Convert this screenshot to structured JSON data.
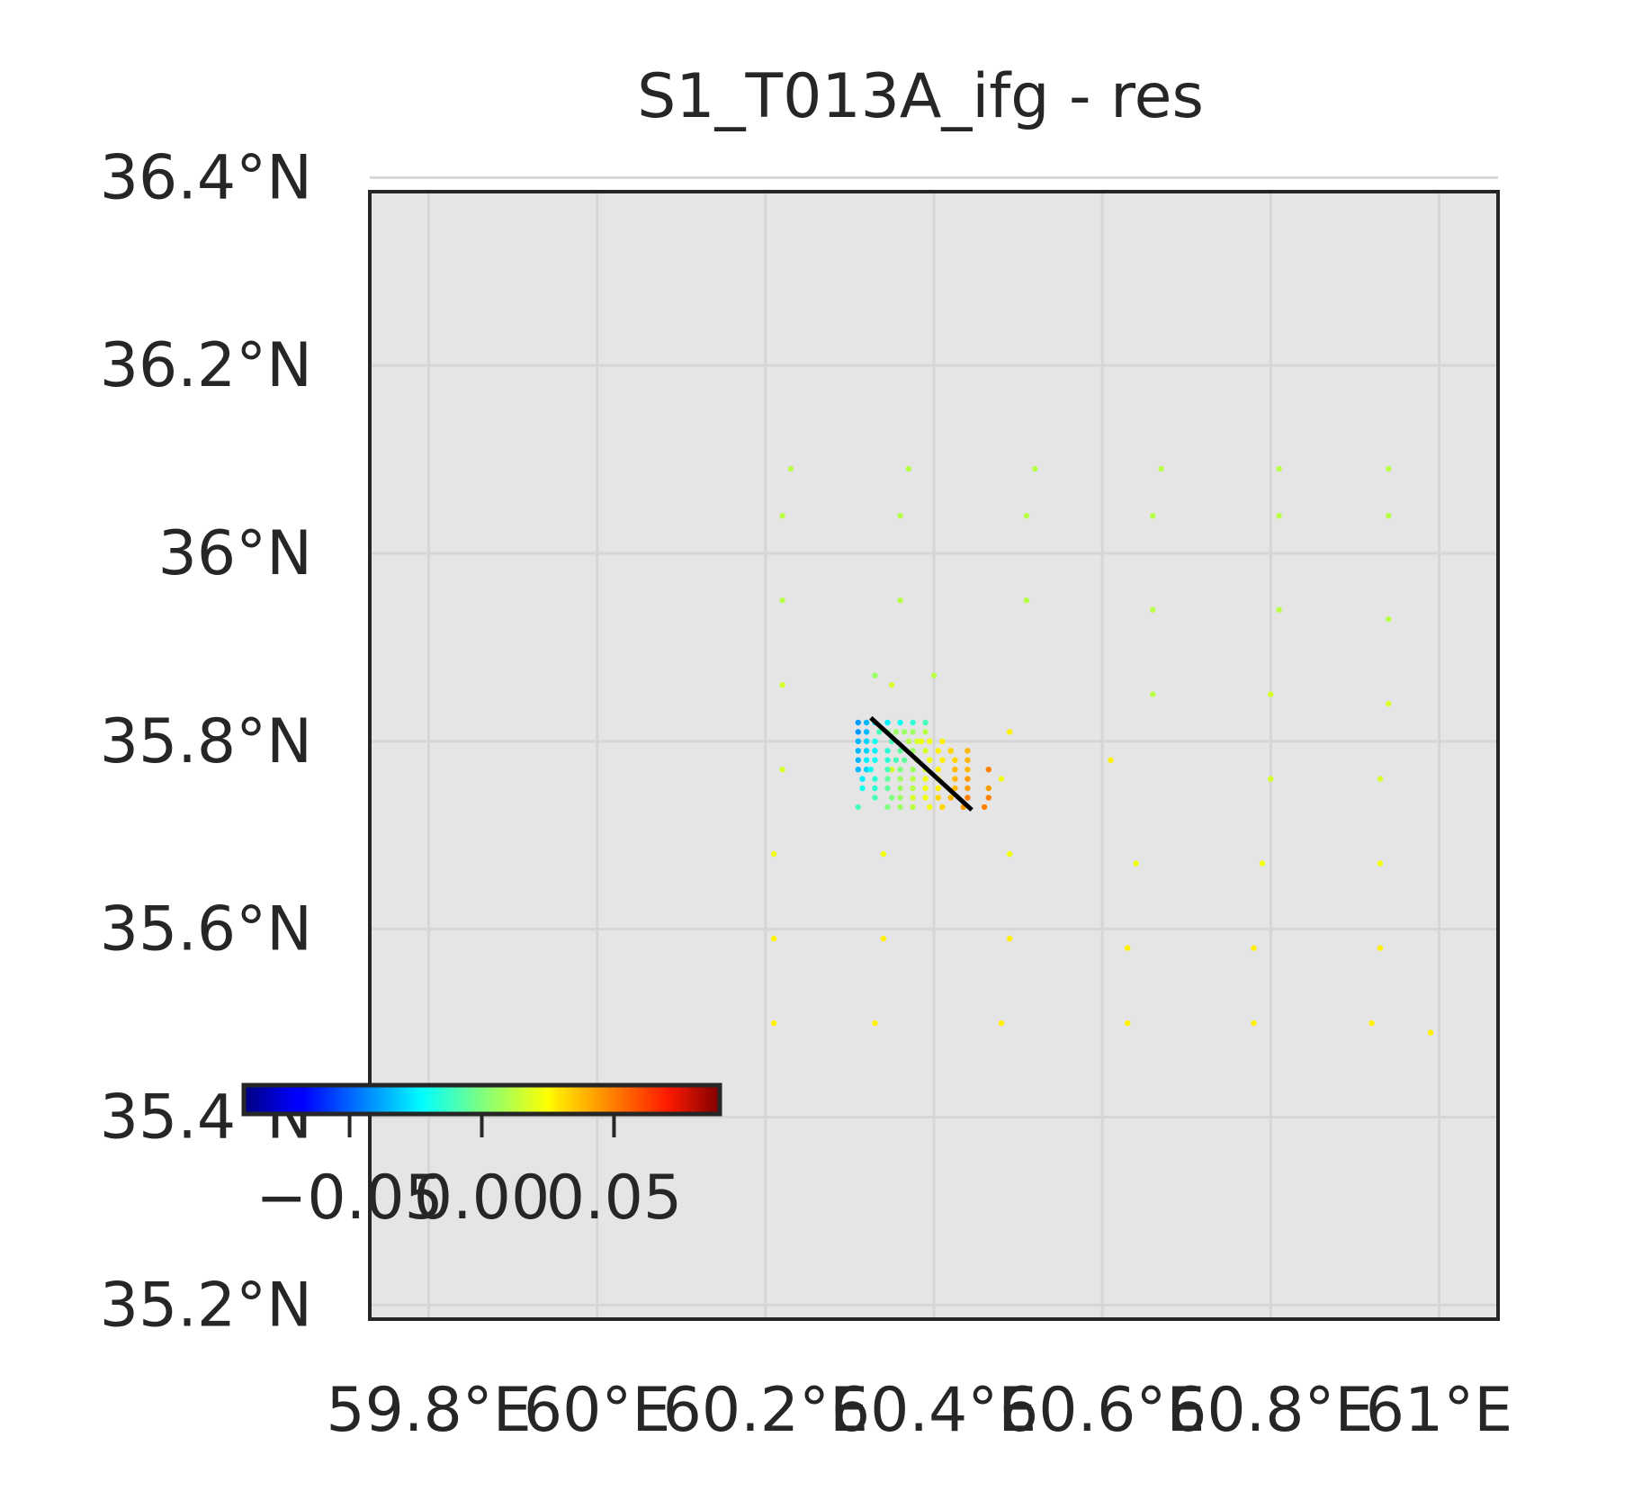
{
  "colors": {
    "plot_background": "#e5e5e5",
    "grid": "#d6d6d6",
    "frame": "#262626",
    "text": "#262626",
    "fault_line": "#000000",
    "colormap": "jet"
  },
  "chart_data": {
    "type": "scatter",
    "title": "S1_T013A_ifg - res",
    "xlabel": "",
    "ylabel": "",
    "xlim": [
      59.73,
      61.07
    ],
    "ylim": [
      35.185,
      36.385
    ],
    "grid": true,
    "x_ticks": [
      {
        "value": 59.8,
        "label": "59.8°E"
      },
      {
        "value": 60.0,
        "label": "60°E"
      },
      {
        "value": 60.2,
        "label": "60.2°E"
      },
      {
        "value": 60.4,
        "label": "60.4°E"
      },
      {
        "value": 60.6,
        "label": "60.6°E"
      },
      {
        "value": 60.8,
        "label": "60.8°E"
      },
      {
        "value": 61.0,
        "label": "61°E"
      }
    ],
    "y_ticks": [
      {
        "value": 35.2,
        "label": "35.2°N"
      },
      {
        "value": 35.4,
        "label": "35.4°N"
      },
      {
        "value": 35.6,
        "label": "35.6°N"
      },
      {
        "value": 35.8,
        "label": "35.8°N"
      },
      {
        "value": 36.0,
        "label": "36°N"
      },
      {
        "value": 36.2,
        "label": "36.2°N"
      },
      {
        "value": 36.4,
        "label": "36.4°N"
      }
    ],
    "colorbar": {
      "colormap": "jet",
      "vmin": -0.09,
      "vmax": 0.09,
      "orientation": "horizontal",
      "placement": "lower-left, overlapping axes",
      "ticks": [
        {
          "value": -0.05,
          "label": "−0.05"
        },
        {
          "value": 0.0,
          "label": "0.00"
        },
        {
          "value": 0.05,
          "label": "0.05"
        }
      ]
    },
    "fault_line": [
      [
        60.325,
        35.825
      ],
      [
        60.445,
        35.727
      ]
    ],
    "points": [
      [
        60.23,
        36.09,
        0.01
      ],
      [
        60.37,
        36.09,
        0.01
      ],
      [
        60.52,
        36.09,
        0.01
      ],
      [
        60.67,
        36.09,
        0.01
      ],
      [
        60.81,
        36.09,
        0.01
      ],
      [
        60.94,
        36.09,
        0.01
      ],
      [
        60.22,
        36.04,
        0.01
      ],
      [
        60.36,
        36.04,
        0.01
      ],
      [
        60.51,
        36.04,
        0.01
      ],
      [
        60.66,
        36.04,
        0.01
      ],
      [
        60.81,
        36.04,
        0.01
      ],
      [
        60.94,
        36.04,
        0.01
      ],
      [
        60.22,
        35.95,
        0.01
      ],
      [
        60.36,
        35.95,
        0.01
      ],
      [
        60.51,
        35.95,
        0.01
      ],
      [
        60.66,
        35.94,
        0.01
      ],
      [
        60.81,
        35.94,
        0.01
      ],
      [
        60.94,
        35.93,
        0.01
      ],
      [
        60.22,
        35.86,
        0.015
      ],
      [
        60.35,
        35.86,
        0.015
      ],
      [
        60.66,
        35.85,
        0.01
      ],
      [
        60.8,
        35.85,
        0.015
      ],
      [
        60.94,
        35.84,
        0.015
      ],
      [
        60.33,
        35.87,
        0.005
      ],
      [
        60.4,
        35.87,
        0.01
      ],
      [
        60.22,
        35.77,
        0.015
      ],
      [
        60.35,
        35.77,
        0.015
      ],
      [
        60.61,
        35.78,
        0.025
      ],
      [
        60.8,
        35.76,
        0.015
      ],
      [
        60.93,
        35.76,
        0.015
      ],
      [
        60.21,
        35.68,
        0.02
      ],
      [
        60.34,
        35.68,
        0.02
      ],
      [
        60.49,
        35.68,
        0.02
      ],
      [
        60.64,
        35.67,
        0.02
      ],
      [
        60.79,
        35.67,
        0.02
      ],
      [
        60.93,
        35.67,
        0.02
      ],
      [
        60.21,
        35.59,
        0.025
      ],
      [
        60.34,
        35.59,
        0.025
      ],
      [
        60.49,
        35.59,
        0.025
      ],
      [
        60.63,
        35.58,
        0.025
      ],
      [
        60.78,
        35.58,
        0.025
      ],
      [
        60.93,
        35.58,
        0.025
      ],
      [
        60.21,
        35.5,
        0.025
      ],
      [
        60.33,
        35.5,
        0.025
      ],
      [
        60.48,
        35.5,
        0.025
      ],
      [
        60.63,
        35.5,
        0.025
      ],
      [
        60.78,
        35.5,
        0.025
      ],
      [
        60.92,
        35.5,
        0.025
      ],
      [
        60.99,
        35.49,
        0.025
      ],
      [
        60.31,
        35.82,
        -0.04
      ],
      [
        60.32,
        35.82,
        -0.035
      ],
      [
        60.33,
        35.82,
        -0.03
      ],
      [
        60.345,
        35.82,
        -0.025
      ],
      [
        60.36,
        35.82,
        -0.02
      ],
      [
        60.375,
        35.82,
        -0.015
      ],
      [
        60.39,
        35.82,
        -0.01
      ],
      [
        60.31,
        35.81,
        -0.04
      ],
      [
        60.32,
        35.81,
        -0.035
      ],
      [
        60.335,
        35.81,
        -0.01
      ],
      [
        60.345,
        35.81,
        0.0
      ],
      [
        60.355,
        35.81,
        0.005
      ],
      [
        60.365,
        35.81,
        0.005
      ],
      [
        60.375,
        35.81,
        0.005
      ],
      [
        60.39,
        35.81,
        0.01
      ],
      [
        60.31,
        35.8,
        -0.035
      ],
      [
        60.32,
        35.8,
        -0.03
      ],
      [
        60.33,
        35.8,
        -0.02
      ],
      [
        60.35,
        35.8,
        -0.01
      ],
      [
        60.37,
        35.8,
        0.01
      ],
      [
        60.38,
        35.8,
        0.015
      ],
      [
        60.385,
        35.8,
        0.02
      ],
      [
        60.395,
        35.8,
        0.02
      ],
      [
        60.41,
        35.8,
        0.025
      ],
      [
        60.31,
        35.79,
        -0.035
      ],
      [
        60.32,
        35.79,
        -0.03
      ],
      [
        60.33,
        35.79,
        -0.025
      ],
      [
        60.345,
        35.79,
        -0.015
      ],
      [
        60.36,
        35.79,
        -0.005
      ],
      [
        60.375,
        35.79,
        0.005
      ],
      [
        60.39,
        35.79,
        0.015
      ],
      [
        60.405,
        35.79,
        0.025
      ],
      [
        60.42,
        35.79,
        0.03
      ],
      [
        60.44,
        35.79,
        0.035
      ],
      [
        60.31,
        35.78,
        -0.035
      ],
      [
        60.32,
        35.78,
        -0.025
      ],
      [
        60.33,
        35.78,
        -0.02
      ],
      [
        60.345,
        35.78,
        -0.015
      ],
      [
        60.355,
        35.78,
        -0.01
      ],
      [
        60.365,
        35.78,
        -0.005
      ],
      [
        60.38,
        35.78,
        0.005
      ],
      [
        60.395,
        35.78,
        0.02
      ],
      [
        60.41,
        35.78,
        0.025
      ],
      [
        60.425,
        35.78,
        0.03
      ],
      [
        60.44,
        35.78,
        0.035
      ],
      [
        60.31,
        35.77,
        -0.035
      ],
      [
        60.32,
        35.77,
        -0.03
      ],
      [
        60.325,
        35.77,
        -0.02
      ],
      [
        60.345,
        35.77,
        -0.01
      ],
      [
        60.36,
        35.77,
        0.0
      ],
      [
        60.375,
        35.77,
        0.005
      ],
      [
        60.39,
        35.77,
        0.015
      ],
      [
        60.405,
        35.77,
        0.025
      ],
      [
        60.425,
        35.77,
        0.035
      ],
      [
        60.44,
        35.77,
        0.035
      ],
      [
        60.465,
        35.77,
        0.045
      ],
      [
        60.315,
        35.76,
        -0.025
      ],
      [
        60.33,
        35.76,
        -0.015
      ],
      [
        60.345,
        35.76,
        -0.005
      ],
      [
        60.36,
        35.76,
        0.005
      ],
      [
        60.375,
        35.76,
        0.01
      ],
      [
        60.39,
        35.76,
        0.02
      ],
      [
        60.405,
        35.76,
        0.025
      ],
      [
        60.425,
        35.76,
        0.035
      ],
      [
        60.44,
        35.76,
        0.04
      ],
      [
        60.315,
        35.75,
        -0.02
      ],
      [
        60.33,
        35.75,
        -0.015
      ],
      [
        60.345,
        35.75,
        -0.005
      ],
      [
        60.36,
        35.75,
        0.005
      ],
      [
        60.375,
        35.75,
        0.01
      ],
      [
        60.39,
        35.75,
        0.02
      ],
      [
        60.405,
        35.75,
        0.025
      ],
      [
        60.425,
        35.75,
        0.035
      ],
      [
        60.44,
        35.75,
        0.04
      ],
      [
        60.465,
        35.75,
        0.04
      ],
      [
        60.33,
        35.74,
        -0.01
      ],
      [
        60.35,
        35.74,
        0.0
      ],
      [
        60.36,
        35.74,
        0.005
      ],
      [
        60.375,
        35.74,
        0.015
      ],
      [
        60.39,
        35.74,
        0.02
      ],
      [
        60.405,
        35.74,
        0.03
      ],
      [
        60.42,
        35.74,
        0.035
      ],
      [
        60.44,
        35.74,
        0.045
      ],
      [
        60.465,
        35.74,
        0.045
      ],
      [
        60.31,
        35.73,
        -0.01
      ],
      [
        60.345,
        35.73,
        0.0
      ],
      [
        60.36,
        35.73,
        0.005
      ],
      [
        60.375,
        35.73,
        0.01
      ],
      [
        60.395,
        35.73,
        0.02
      ],
      [
        60.41,
        35.73,
        0.03
      ],
      [
        60.435,
        35.73,
        0.04
      ],
      [
        60.46,
        35.73,
        0.045
      ],
      [
        60.49,
        35.81,
        0.025
      ],
      [
        60.48,
        35.76,
        0.02
      ]
    ]
  }
}
